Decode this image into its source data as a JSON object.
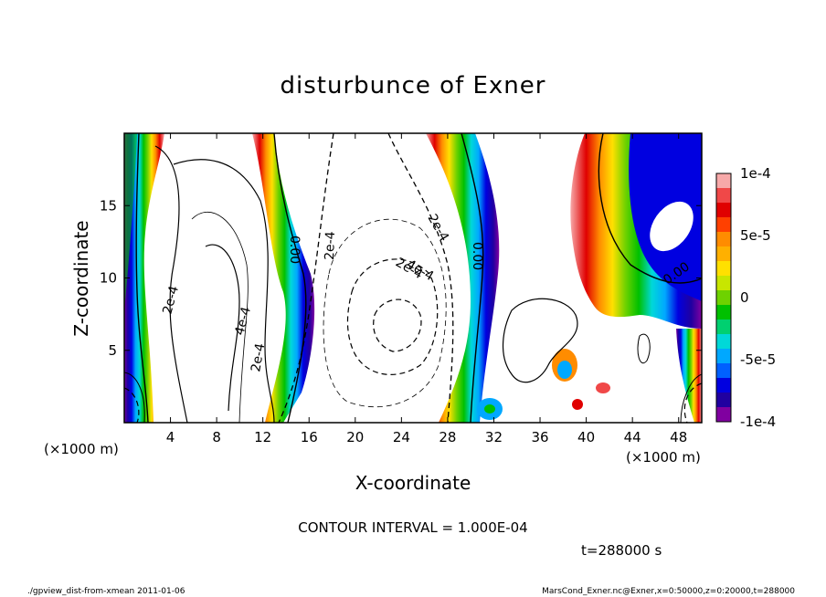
{
  "chart_data": {
    "type": "contour",
    "title": "disturbunce of Exner",
    "xlabel": "X-coordinate",
    "ylabel": "Z-coordinate",
    "x_unit": "(×1000 m)",
    "y_unit": "(×1000 m)",
    "xlim": [
      0,
      50
    ],
    "ylim": [
      0,
      20
    ],
    "x_ticks": [
      4,
      8,
      12,
      16,
      20,
      24,
      28,
      32,
      36,
      40,
      44,
      48
    ],
    "y_ticks": [
      5,
      10,
      15
    ],
    "contour_interval": "CONTOUR INTERVAL = 1.000E-04",
    "time_label": "t=288000 s",
    "colorbar": {
      "labels": [
        "1e-4",
        "5e-5",
        "0",
        "-5e-5",
        "-1e-4"
      ],
      "values": [
        0.0001,
        5e-05,
        0,
        -5e-05,
        -0.0001
      ],
      "colors": [
        "#f7a9a9",
        "#f04848",
        "#e00000",
        "#ff4000",
        "#ff8c00",
        "#ffb000",
        "#ffe000",
        "#c8e600",
        "#6ed200",
        "#00c000",
        "#00d070",
        "#00d8d8",
        "#00a8ff",
        "#0060ff",
        "#0000e0",
        "#2000a0",
        "#8000a0"
      ]
    },
    "contour_labels": [
      "0.00",
      "2e-4",
      "2e-4",
      "4e-4",
      "2e-4",
      "2e-4",
      "2e-4",
      "4e-4",
      "0.00",
      "0.00"
    ],
    "grid": false
  },
  "footer": {
    "left": "./gpview_dist-from-xmean  2011-01-06",
    "right": "MarsCond_Exner.nc@Exner,x=0:50000,z=0:20000,t=288000"
  }
}
